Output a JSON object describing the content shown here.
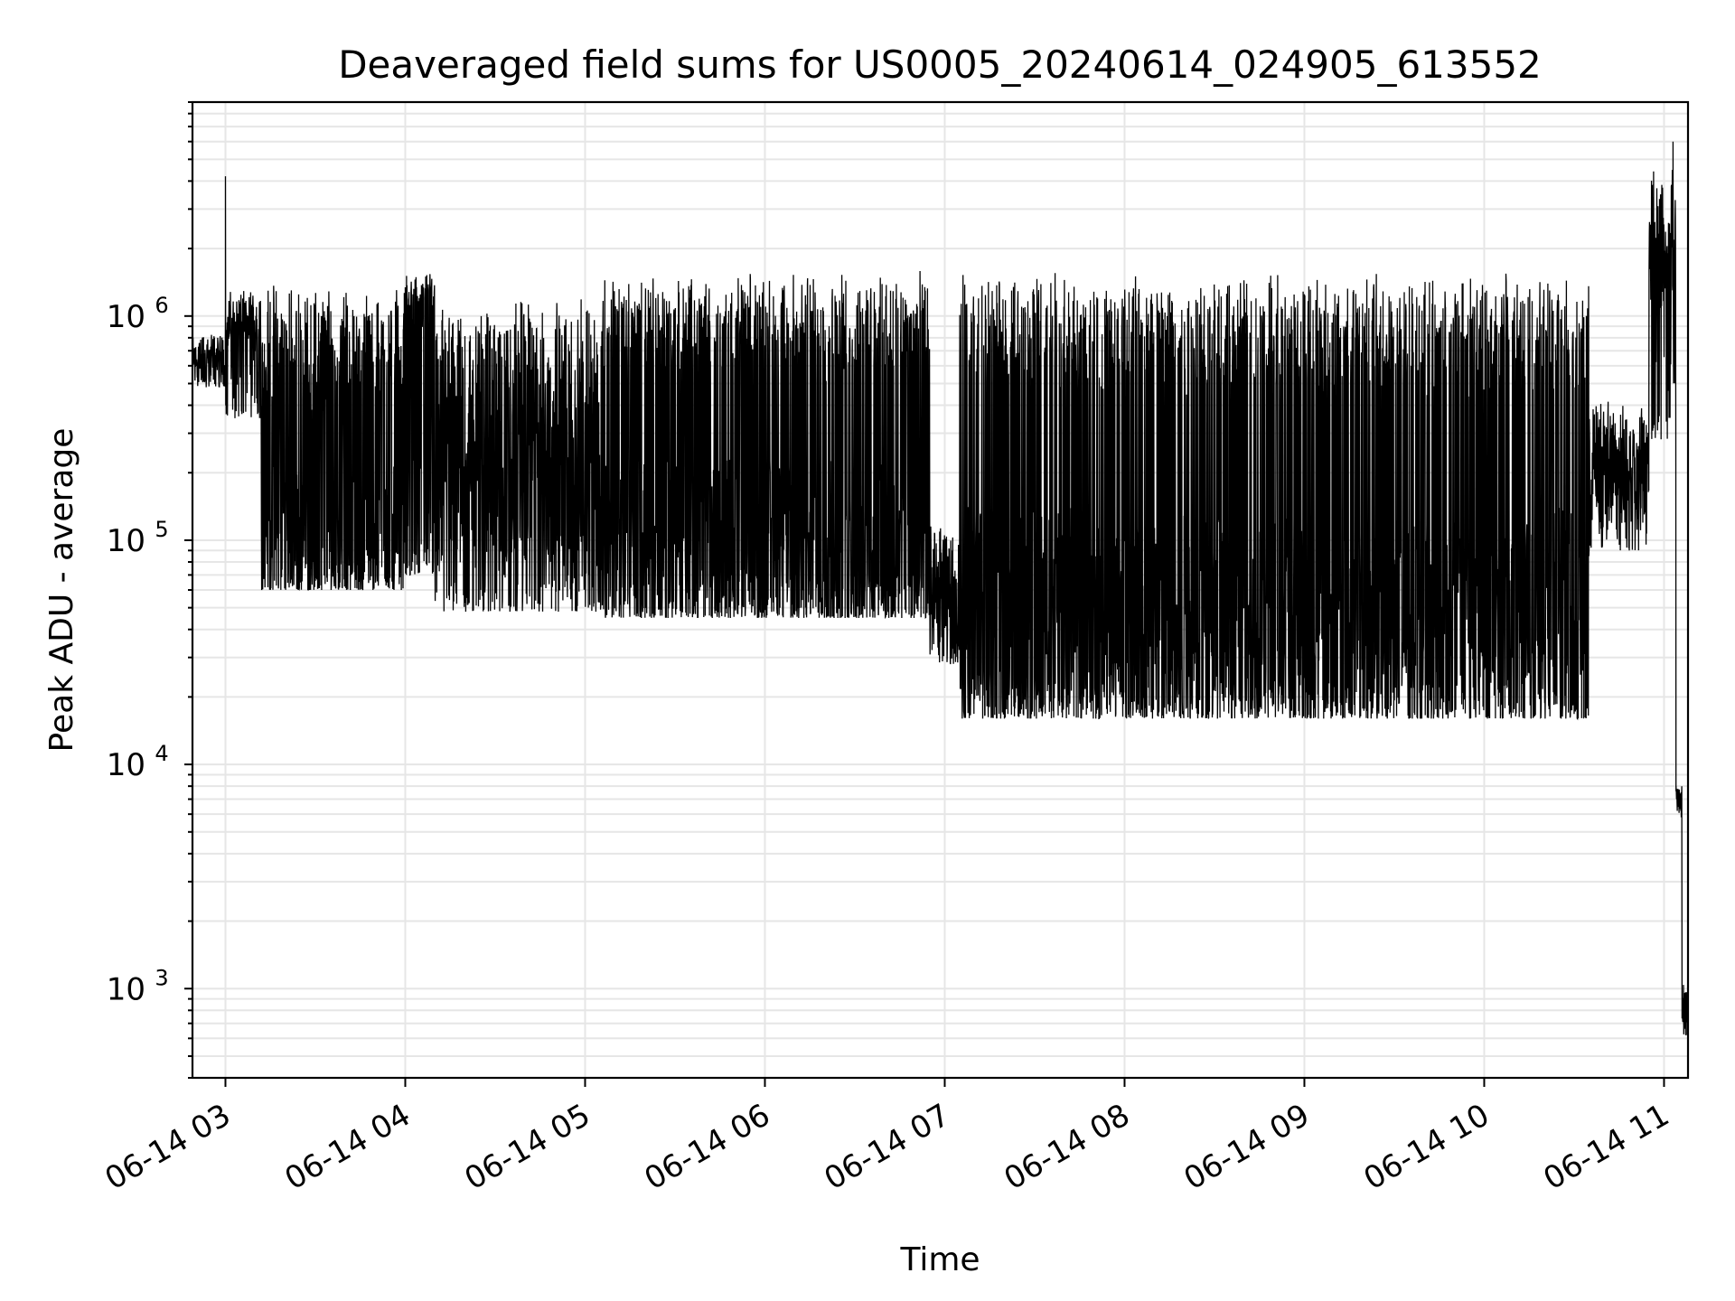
{
  "chart_data": {
    "type": "line",
    "title": "Deaveraged field sums for US0005_20240614_024905_613552",
    "xlabel": "Time",
    "ylabel": "Peak ADU - average",
    "x_axis": "time",
    "x_range": [
      "2024-06-14 02:49",
      "2024-06-14 11:08"
    ],
    "x_ticks": [
      {
        "t": "2024-06-14 03:00",
        "label": "06-14 03"
      },
      {
        "t": "2024-06-14 04:00",
        "label": "06-14 04"
      },
      {
        "t": "2024-06-14 05:00",
        "label": "06-14 05"
      },
      {
        "t": "2024-06-14 06:00",
        "label": "06-14 06"
      },
      {
        "t": "2024-06-14 07:00",
        "label": "06-14 07"
      },
      {
        "t": "2024-06-14 08:00",
        "label": "06-14 08"
      },
      {
        "t": "2024-06-14 09:00",
        "label": "06-14 09"
      },
      {
        "t": "2024-06-14 10:00",
        "label": "06-14 10"
      },
      {
        "t": "2024-06-14 11:00",
        "label": "06-14 11"
      }
    ],
    "y_scale": "log",
    "ylim": [
      400,
      9000000
    ],
    "y_ticks": [
      {
        "value": 1000,
        "base": "10",
        "exp": "3"
      },
      {
        "value": 10000,
        "base": "10",
        "exp": "4"
      },
      {
        "value": 100000,
        "base": "10",
        "exp": "5"
      },
      {
        "value": 1000000,
        "base": "10",
        "exp": "6"
      }
    ],
    "grid": true,
    "grid_minor": true,
    "line_color": "#000000",
    "grid_color": "#e6e6e6",
    "series": [
      {
        "segments": [
          {
            "start": "2024-06-14 02:49",
            "end": "2024-06-14 03:00",
            "base": 650000,
            "spikes": [],
            "hi": 950000,
            "lo": 480000,
            "dip_rate": 0.15
          },
          {
            "start": "2024-06-14 03:00",
            "end": "2024-06-14 03:12",
            "base": 900000,
            "hi": 1400000,
            "lo": 350000,
            "dip_rate": 0.25
          },
          {
            "start": "2024-06-14 03:12",
            "end": "2024-06-14 04:00",
            "base": 500000,
            "hi": 1600000,
            "lo": 60000,
            "dip_rate": 0.55
          },
          {
            "start": "2024-06-14 04:00",
            "end": "2024-06-14 04:10",
            "base": 1200000,
            "hi": 1700000,
            "lo": 70000,
            "dip_rate": 0.5
          },
          {
            "start": "2024-06-14 04:10",
            "end": "2024-06-14 05:05",
            "base": 75000,
            "hi": 1650000,
            "lo": 48000,
            "dip_rate": 0.12
          },
          {
            "start": "2024-06-14 05:05",
            "end": "2024-06-14 06:55",
            "base": 700000,
            "hi": 1750000,
            "lo": 45000,
            "dip_rate": 0.6
          },
          {
            "start": "2024-06-14 06:55",
            "end": "2024-06-14 07:05",
            "base": 40000,
            "hi": 150000,
            "lo": 28000,
            "dip_rate": 0.2
          },
          {
            "start": "2024-06-14 07:05",
            "end": "2024-06-14 10:35",
            "base": 600000,
            "hi": 1800000,
            "lo": 16000,
            "dip_rate": 0.65
          },
          {
            "start": "2024-06-14 10:35",
            "end": "2024-06-14 10:55",
            "base": 150000,
            "hi": 500000,
            "lo": 90000,
            "dip_rate": 0.15
          },
          {
            "start": "2024-06-14 10:55",
            "end": "2024-06-14 11:04",
            "base": 1200000,
            "hi": 6000000,
            "lo": 280000,
            "dip_rate": 0.2
          },
          {
            "start": "2024-06-14 11:04",
            "end": "2024-06-14 11:06",
            "base": 8000,
            "hi": 8000,
            "lo": 3500,
            "dip_rate": 0.0
          },
          {
            "start": "2024-06-14 11:06",
            "end": "2024-06-14 11:08",
            "base": 900,
            "hi": 1400,
            "lo": 620,
            "dip_rate": 0.3
          }
        ],
        "peaks": [
          {
            "t": "2024-06-14 03:00",
            "value": 4200000
          },
          {
            "t": "2024-06-14 11:03",
            "value": 6000000
          },
          {
            "t": "2024-06-14 11:04",
            "value": 8000
          }
        ]
      }
    ]
  }
}
